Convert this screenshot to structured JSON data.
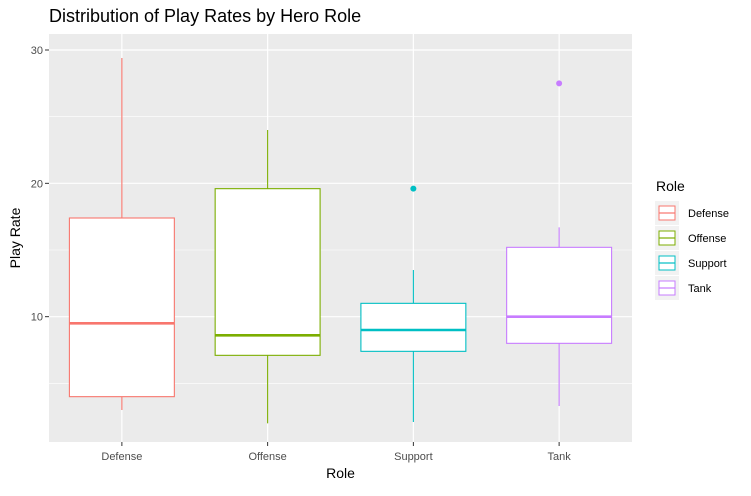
{
  "chart_data": {
    "type": "boxplot",
    "title": "Distribution of Play Rates by Hero Role",
    "xlabel": "Role",
    "ylabel": "Play Rate",
    "ylim": [
      0.6,
      31.2
    ],
    "yticks": [
      10,
      20,
      30
    ],
    "categories": [
      "Defense",
      "Offense",
      "Support",
      "Tank"
    ],
    "legend": {
      "title": "Role",
      "position": "right"
    },
    "grid": true,
    "boxes": [
      {
        "name": "Defense",
        "color": "#F8766D",
        "whisker_low": 3.0,
        "q1": 4.0,
        "median": 9.5,
        "q3": 17.4,
        "whisker_high": 29.4,
        "outliers": []
      },
      {
        "name": "Offense",
        "color": "#7CAE00",
        "whisker_low": 2.0,
        "q1": 7.1,
        "median": 8.6,
        "q3": 19.6,
        "whisker_high": 24.0,
        "outliers": []
      },
      {
        "name": "Support",
        "color": "#00BFC4",
        "whisker_low": 2.1,
        "q1": 7.4,
        "median": 9.0,
        "q3": 11.0,
        "whisker_high": 13.5,
        "outliers": [
          19.6
        ]
      },
      {
        "name": "Tank",
        "color": "#C77CFF",
        "whisker_low": 3.3,
        "q1": 8.0,
        "median": 10.0,
        "q3": 15.2,
        "whisker_high": 16.7,
        "outliers": [
          27.5
        ]
      }
    ]
  }
}
